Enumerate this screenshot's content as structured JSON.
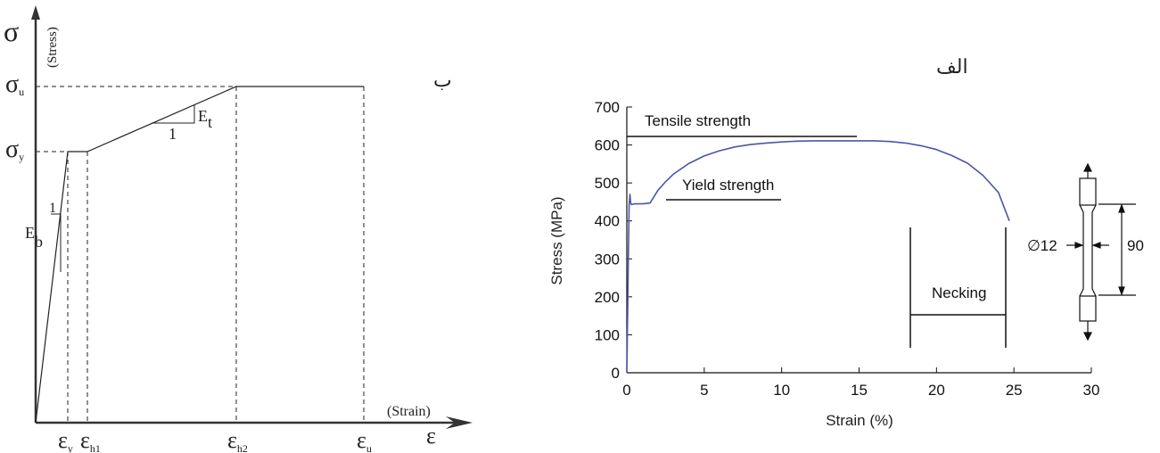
{
  "panel_b": {
    "panel_label": "ب",
    "ylabel_symbol": "σ",
    "ylabel": "(Stress)",
    "xlabel": "(Strain)",
    "xlabel_symbol": "ε",
    "y_ticks": [
      {
        "main": "σ",
        "sub": "u"
      },
      {
        "main": "σ",
        "sub": "y"
      }
    ],
    "x_ticks": [
      {
        "main": "ε",
        "sub": "y"
      },
      {
        "main": "ε",
        "sub": "h1"
      },
      {
        "main": "ε",
        "sub": "h2"
      },
      {
        "main": "ε",
        "sub": "u"
      }
    ],
    "annotations": {
      "et_main": "E",
      "et_sub": "t",
      "et_run": "1",
      "eb_main": "E",
      "eb_sub": "b",
      "eb_run": "1"
    }
  },
  "chart_data": {
    "type": "line",
    "panel_label": "الف",
    "xlabel": "Strain (%)",
    "ylabel": "Stress (MPa)",
    "xlim": [
      0,
      30
    ],
    "ylim": [
      0,
      700
    ],
    "x_ticks": [
      0,
      5,
      10,
      15,
      20,
      25,
      30
    ],
    "y_ticks": [
      0,
      100,
      200,
      300,
      400,
      500,
      600,
      700
    ],
    "series": [
      {
        "color": "#4a56a8",
        "x": [
          0,
          0.05,
          0.1,
          0.15,
          0.2,
          0.25,
          0.3,
          0.5,
          1.0,
          1.5,
          1.7,
          2.0,
          2.5,
          3,
          4,
          5,
          6,
          7,
          8,
          9,
          10,
          11,
          12,
          13,
          14,
          15,
          16,
          17,
          18,
          19,
          20,
          21,
          22,
          23,
          24,
          24.7
        ],
        "y": [
          0,
          150,
          300,
          440,
          470,
          448,
          443,
          445,
          445,
          447,
          460,
          480,
          503,
          523,
          551,
          571,
          585,
          595,
          601,
          605,
          608,
          610,
          611,
          611,
          611,
          611,
          611,
          609,
          605,
          598,
          588,
          572,
          552,
          520,
          475,
          400
        ]
      }
    ],
    "annotations": {
      "tensile_strength": "Tensile strength",
      "yield_strength": "Yield strength",
      "necking": "Necking",
      "diameter": "∅12",
      "gauge_length": "90"
    }
  }
}
